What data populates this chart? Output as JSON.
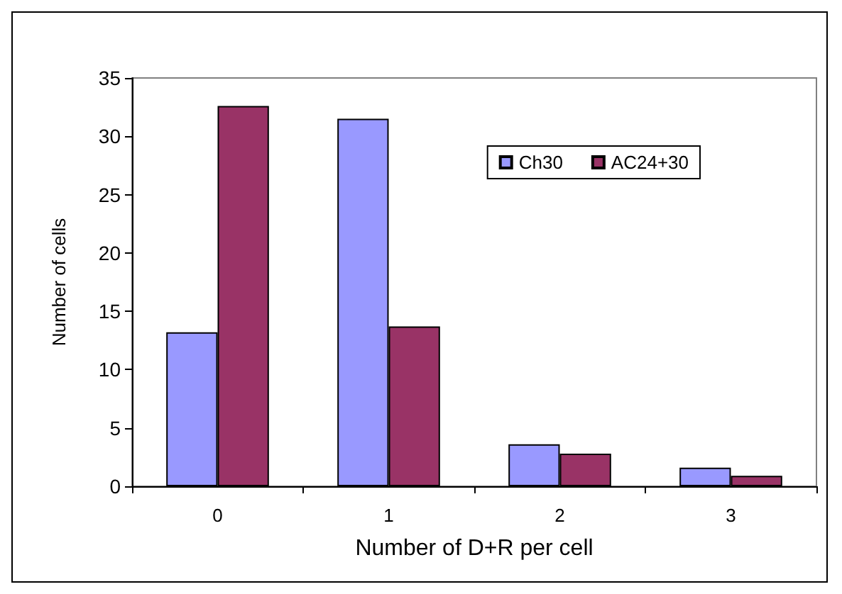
{
  "chart_data": {
    "type": "bar",
    "xlabel": "Number of D+R per cell",
    "ylabel": "Number of cells",
    "categories": [
      "0",
      "1",
      "2",
      "3"
    ],
    "series": [
      {
        "name": "Ch30",
        "color": "#9999ff",
        "values": [
          13.2,
          31.5,
          3.6,
          1.6
        ]
      },
      {
        "name": "AC24+30",
        "color": "#993366",
        "values": [
          32.6,
          13.7,
          2.8,
          0.9
        ]
      }
    ],
    "ylim": [
      0,
      35
    ],
    "yticks": [
      0,
      5,
      10,
      15,
      20,
      25,
      30,
      35
    ],
    "grid": false,
    "legend": "top right"
  }
}
